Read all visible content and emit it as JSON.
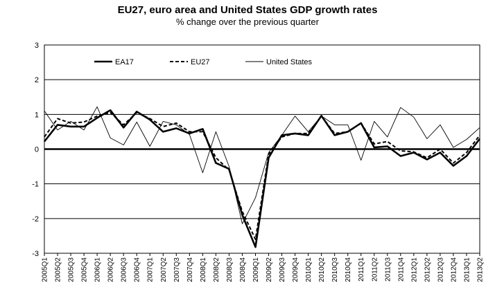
{
  "chart_data": {
    "type": "line",
    "title": "EU27, euro area and United States GDP growth rates",
    "subtitle": "% change over the previous quarter",
    "xlabel": "",
    "ylabel": "",
    "ylim": [
      -3,
      3
    ],
    "yticks": [
      3,
      2,
      1,
      0,
      -1,
      -2,
      -3
    ],
    "grid": true,
    "legend_position": "top-left",
    "categories": [
      "2005Q1",
      "2005Q2",
      "2005Q3",
      "2005Q4",
      "2006Q1",
      "2006Q2",
      "2006Q3",
      "2006Q4",
      "2007Q1",
      "2007Q2",
      "2007Q3",
      "2007Q4",
      "2008Q1",
      "2008Q2",
      "2008Q3",
      "2008Q4",
      "2009Q1",
      "2009Q2",
      "2009Q3",
      "2009Q4",
      "2010Q1",
      "2010Q2",
      "2010Q3",
      "2010Q4",
      "2011Q1",
      "2011Q2",
      "2011Q3",
      "2011Q4",
      "2012Q1",
      "2012Q2",
      "2012Q3",
      "2012Q4",
      "2013Q1",
      "2013Q2"
    ],
    "tick_labels": [
      "2005Q1",
      "2005Q2",
      "2005Q3",
      "2005Q4",
      "2006Q1",
      "2006Q2",
      "2006Q3",
      "2006Q4",
      "2007Q1",
      "2007Q2",
      "2007Q3",
      "2007Q4",
      "2008Q1",
      "2008Q2",
      "2008Q3",
      "2008Q4",
      "2009Q1",
      "2009Q2",
      "2009Q3",
      "2009Q4",
      "2010Q1",
      "2010Q2",
      "2010Q3",
      "2010Q4",
      "2011Q1",
      "2011Q2",
      "2011Q3",
      "2011Q4",
      "2012Q1",
      "2012Q2",
      "2012Q3",
      "2012Q4",
      "2013Q1",
      "2013Q2"
    ],
    "series": [
      {
        "name": "EA17",
        "style": "thick-solid",
        "color": "#000000",
        "values": [
          0.22,
          0.7,
          0.65,
          0.65,
          0.9,
          1.12,
          0.62,
          1.08,
          0.85,
          0.5,
          0.6,
          0.45,
          0.58,
          -0.4,
          -0.57,
          -1.9,
          -2.82,
          -0.25,
          0.4,
          0.45,
          0.4,
          0.96,
          0.4,
          0.5,
          0.75,
          0.05,
          0.08,
          -0.2,
          -0.1,
          -0.3,
          -0.1,
          -0.48,
          -0.2,
          0.3
        ]
      },
      {
        "name": "EU27",
        "style": "dashed",
        "color": "#000000",
        "values": [
          0.35,
          0.88,
          0.75,
          0.78,
          0.95,
          1.05,
          0.7,
          1.05,
          0.88,
          0.65,
          0.75,
          0.5,
          0.5,
          -0.25,
          -0.6,
          -1.8,
          -2.6,
          -0.15,
          0.35,
          0.45,
          0.45,
          0.95,
          0.45,
          0.5,
          0.75,
          0.15,
          0.22,
          -0.05,
          -0.08,
          -0.25,
          0.0,
          -0.4,
          -0.1,
          0.4
        ]
      },
      {
        "name": "United States",
        "style": "thin-solid",
        "color": "#000000",
        "values": [
          1.1,
          0.55,
          0.8,
          0.55,
          1.22,
          0.32,
          0.12,
          0.78,
          0.08,
          0.8,
          0.7,
          0.42,
          -0.68,
          0.5,
          -0.5,
          -2.15,
          -1.4,
          -0.1,
          0.4,
          0.95,
          0.5,
          0.95,
          0.7,
          0.7,
          -0.32,
          0.8,
          0.35,
          1.2,
          0.92,
          0.3,
          0.7,
          0.05,
          0.28,
          0.62
        ]
      }
    ]
  }
}
